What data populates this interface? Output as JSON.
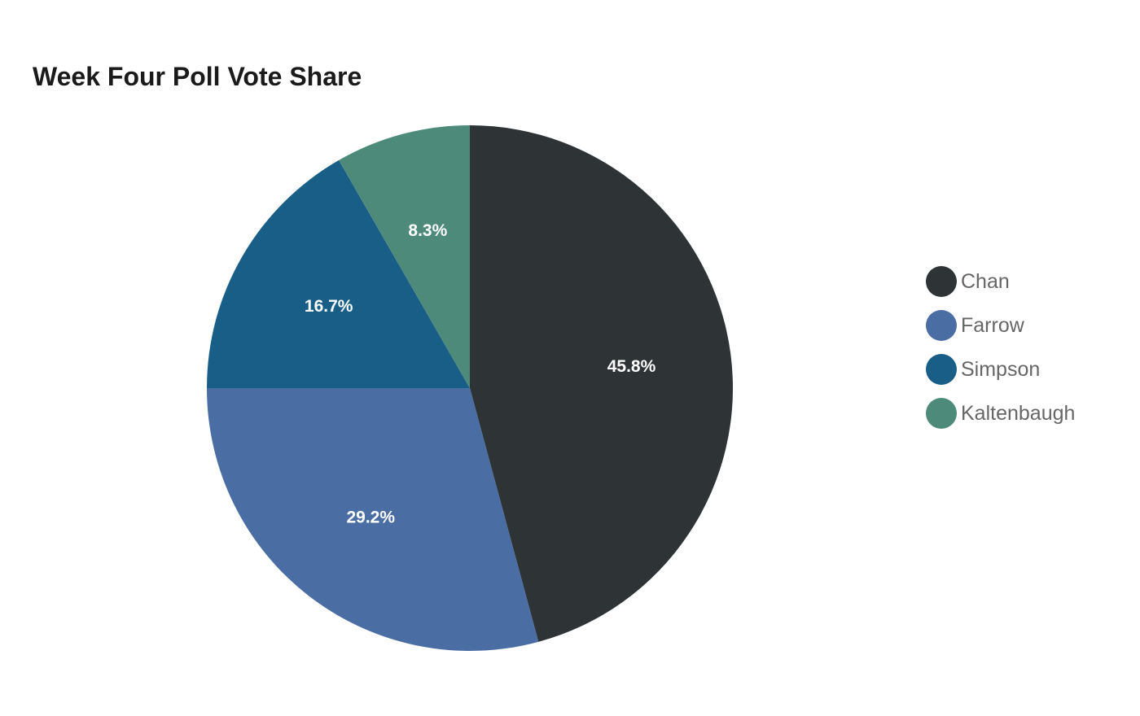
{
  "chart_data": {
    "type": "pie",
    "title": "Week Four Poll Vote Share",
    "legend_position": "right",
    "slices": [
      {
        "name": "Chan",
        "value": 45.8,
        "label": "45.8%",
        "color": "#2e3436"
      },
      {
        "name": "Farrow",
        "value": 29.2,
        "label": "29.2%",
        "color": "#4a6da3"
      },
      {
        "name": "Simpson",
        "value": 16.7,
        "label": "16.7%",
        "color": "#195e87"
      },
      {
        "name": "Kaltenbaugh",
        "value": 8.3,
        "label": "8.3%",
        "color": "#4e8a7a"
      }
    ]
  }
}
